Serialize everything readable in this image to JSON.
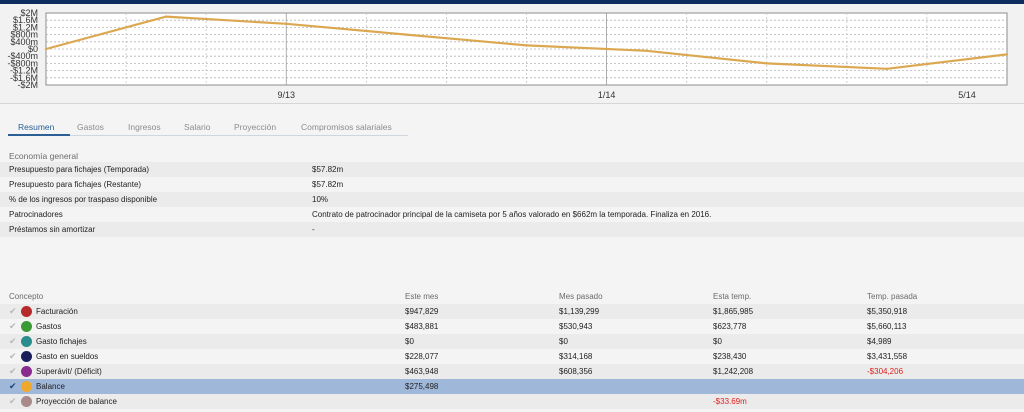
{
  "chart_data": {
    "type": "line",
    "y_tick_labels": [
      "$2M",
      "$1.6M",
      "$1.2M",
      "$800m",
      "$400m",
      "$0",
      "-$400m",
      "-$800m",
      "-$1.2M",
      "-$1.6M",
      "-$2M"
    ],
    "x_tick_labels": [
      "9/13",
      "1/14",
      "5/14"
    ],
    "ylim": [
      -2000000,
      2000000
    ],
    "grid": true,
    "series": [
      {
        "values": [
          0,
          1800000,
          1400000,
          800000,
          200000,
          -100000,
          -800000,
          -1100000,
          -300000
        ]
      }
    ],
    "line_color": "#dba851"
  },
  "tabs": [
    {
      "label": "Resumen",
      "active": true
    },
    {
      "label": "Gastos"
    },
    {
      "label": "Ingresos"
    },
    {
      "label": "Salario"
    },
    {
      "label": "Proyección"
    },
    {
      "label": "Compromisos salariales"
    }
  ],
  "general": {
    "title": "Economía general",
    "rows": [
      {
        "label": "Presupuesto para fichajes (Temporada)",
        "value": "$57.82m"
      },
      {
        "label": "Presupuesto para fichajes (Restante)",
        "value": "$57.82m"
      },
      {
        "label": "% de los ingresos por traspaso disponible",
        "value": "10%"
      },
      {
        "label": "Patrocinadores",
        "value": "Contrato de patrocinador principal de la camiseta por 5 años valorado en $662m la temporada. Finaliza en 2016."
      },
      {
        "label": "Préstamos sin amortizar",
        "value": "-"
      }
    ]
  },
  "finances": {
    "headers": [
      "Concepto",
      "Este mes",
      "Mes pasado",
      "Esta temp.",
      "Temp. pasada"
    ],
    "rows": [
      {
        "concept": "Facturación",
        "color": "#b52a2a",
        "este_mes": "$947,829",
        "mes_pasado": "$1,139,299",
        "esta_temp": "$1,865,985",
        "temp_pasada": "$5,350,918"
      },
      {
        "concept": "Gastos",
        "color": "#3a9a35",
        "este_mes": "$483,881",
        "mes_pasado": "$530,943",
        "esta_temp": "$623,778",
        "temp_pasada": "$5,660,113"
      },
      {
        "concept": "Gasto fichajes",
        "color": "#2a8c8c",
        "este_mes": "$0",
        "mes_pasado": "$0",
        "esta_temp": "$0",
        "temp_pasada": "$4,989"
      },
      {
        "concept": "Gasto en sueldos",
        "color": "#1a1f5c",
        "este_mes": "$228,077",
        "mes_pasado": "$314,168",
        "esta_temp": "$238,430",
        "temp_pasada": "$3,431,558"
      },
      {
        "concept": "Superávit/ (Déficit)",
        "color": "#8a2a8f",
        "este_mes": "$463,948",
        "mes_pasado": "$608,356",
        "esta_temp": "$1,242,208",
        "temp_pasada": "-$304,206",
        "temp_pasada_negative": true
      },
      {
        "concept": "Balance",
        "color": "#f0a82c",
        "este_mes": "$275,498",
        "mes_pasado": "",
        "esta_temp": "",
        "temp_pasada": "",
        "selected": true
      },
      {
        "concept": "Proyección de balance",
        "color": "#a88a8a",
        "este_mes": "",
        "mes_pasado": "",
        "esta_temp": "-$33.69m",
        "temp_pasada": "",
        "esta_temp_negative": true
      }
    ]
  }
}
